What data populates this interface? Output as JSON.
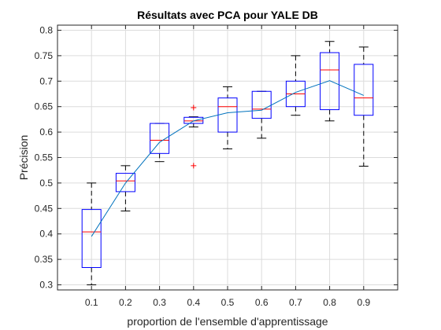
{
  "chart_data": {
    "type": "boxplot",
    "title": "Résultats avec PCA pour YALE DB",
    "xlabel": "proportion de l'ensemble d'apprentissage",
    "ylabel": "Précision",
    "categories": [
      "0.1",
      "0.2",
      "0.3",
      "0.4",
      "0.5",
      "0.6",
      "0.7",
      "0.8",
      "0.9"
    ],
    "ylim": [
      0.29,
      0.81
    ],
    "yticks": [
      "0.3",
      "0.35",
      "0.4",
      "0.45",
      "0.5",
      "0.55",
      "0.6",
      "0.65",
      "0.7",
      "0.75",
      "0.8"
    ],
    "grid": true,
    "boxes": [
      {
        "category": "0.1",
        "whisker_low": 0.3,
        "q1": 0.334,
        "median": 0.404,
        "q3": 0.448,
        "whisker_high": 0.5,
        "outliers": []
      },
      {
        "category": "0.2",
        "whisker_low": 0.445,
        "q1": 0.483,
        "median": 0.504,
        "q3": 0.519,
        "whisker_high": 0.534,
        "outliers": []
      },
      {
        "category": "0.3",
        "whisker_low": 0.542,
        "q1": 0.558,
        "median": 0.584,
        "q3": 0.617,
        "whisker_high": 0.617,
        "outliers": []
      },
      {
        "category": "0.4",
        "whisker_low": 0.61,
        "q1": 0.617,
        "median": 0.622,
        "q3": 0.629,
        "whisker_high": 0.63,
        "outliers": [
          0.648,
          0.534
        ]
      },
      {
        "category": "0.5",
        "whisker_low": 0.567,
        "q1": 0.6,
        "median": 0.65,
        "q3": 0.667,
        "whisker_high": 0.689,
        "outliers": []
      },
      {
        "category": "0.6",
        "whisker_low": 0.588,
        "q1": 0.627,
        "median": 0.645,
        "q3": 0.68,
        "whisker_high": 0.68,
        "outliers": []
      },
      {
        "category": "0.7",
        "whisker_low": 0.633,
        "q1": 0.65,
        "median": 0.675,
        "q3": 0.7,
        "whisker_high": 0.75,
        "outliers": []
      },
      {
        "category": "0.8",
        "whisker_low": 0.622,
        "q1": 0.644,
        "median": 0.722,
        "q3": 0.756,
        "whisker_high": 0.778,
        "outliers": []
      },
      {
        "category": "0.9",
        "whisker_low": 0.533,
        "q1": 0.633,
        "median": 0.667,
        "q3": 0.733,
        "whisker_high": 0.767,
        "outliers": []
      }
    ],
    "mean_line": {
      "values": [
        0.395,
        0.5,
        0.58,
        0.622,
        0.638,
        0.643,
        0.678,
        0.701,
        0.672
      ]
    },
    "colors": {
      "box": "#0000ff",
      "median": "#ff0000",
      "whisker": "#000000",
      "outlier": "#ff0000",
      "mean_line": "#0072bd",
      "grid": "#dcdcdc",
      "axes": "#262626"
    }
  }
}
